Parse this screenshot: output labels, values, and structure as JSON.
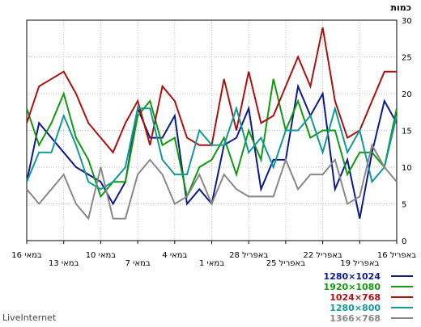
{
  "chart_data": {
    "type": "line",
    "ylabel": "כמות",
    "ylim": [
      0,
      30
    ],
    "yticks": [
      0,
      5,
      10,
      15,
      20,
      25,
      30
    ],
    "grid": true,
    "x_axis_direction": "right-to-left",
    "x_tick_labels": [
      "16 במאי",
      "13 במאי",
      "10 במאי",
      "7 במאי",
      "4 במאי",
      "1 במאי",
      "28 באפריל",
      "25 באפריל",
      "22 באפריל",
      "19 באפריל",
      "16 באפריל"
    ],
    "legend_position": "bottom-right",
    "series": [
      {
        "name": "1280×1024",
        "color": "#0b1a8c",
        "values": [
          8,
          16,
          14,
          12,
          10,
          9,
          8,
          5,
          8,
          18,
          14,
          14,
          17,
          5,
          7,
          5,
          13,
          14,
          18,
          7,
          11,
          11,
          21,
          17,
          20,
          7,
          11,
          3,
          12,
          19,
          16
        ]
      },
      {
        "name": "1920×1080",
        "color": "#119911",
        "values": [
          18,
          13,
          16,
          20,
          14,
          11,
          6,
          8,
          8,
          17,
          19,
          13,
          14,
          6,
          10,
          11,
          14,
          9,
          15,
          11,
          22,
          15,
          19,
          14,
          15,
          15,
          9,
          12,
          12,
          10,
          18
        ]
      },
      {
        "name": "1024×768",
        "color": "#aa1111",
        "values": [
          16,
          21,
          22,
          23,
          20,
          16,
          14,
          12,
          16,
          19,
          13,
          21,
          19,
          14,
          13,
          13,
          22,
          15,
          23,
          16,
          17,
          21,
          25,
          21,
          29,
          19,
          14,
          15,
          19,
          23,
          23
        ]
      },
      {
        "name": "1280×800",
        "color": "#119999",
        "values": [
          8,
          12,
          12,
          17,
          13,
          8,
          7,
          8,
          10,
          18,
          18,
          11,
          9,
          9,
          15,
          13,
          13,
          18,
          12,
          14,
          10,
          15,
          15,
          17,
          12,
          18,
          12,
          15,
          8,
          10,
          17
        ]
      },
      {
        "name": "1366×768",
        "color": "#888888",
        "values": [
          7,
          5,
          7,
          9,
          5,
          3,
          10,
          3,
          3,
          9,
          11,
          9,
          5,
          6,
          9,
          5,
          9,
          7,
          6,
          6,
          6,
          11,
          7,
          9,
          9,
          11,
          5,
          6,
          13,
          10,
          8
        ]
      }
    ]
  },
  "brand": "LiveInternet"
}
